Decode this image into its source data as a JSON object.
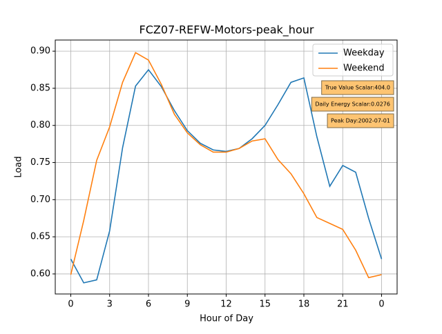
{
  "chart_data": {
    "type": "line",
    "title": "FCZ07-REFW-Motors-peak_hour",
    "xlabel": "Hour of Day",
    "ylabel": "Load",
    "x": [
      0,
      1,
      2,
      3,
      4,
      5,
      6,
      7,
      8,
      9,
      10,
      11,
      12,
      13,
      14,
      15,
      16,
      17,
      18,
      19,
      20,
      21,
      22,
      23,
      24
    ],
    "series": [
      {
        "name": "Weekday",
        "color": "#1f77b4",
        "values": [
          0.62,
          0.588,
          0.592,
          0.658,
          0.77,
          0.853,
          0.875,
          0.852,
          0.82,
          0.793,
          0.776,
          0.767,
          0.765,
          0.769,
          0.782,
          0.8,
          0.828,
          0.858,
          0.864,
          0.785,
          0.718,
          0.746,
          0.737,
          0.675,
          0.62
        ]
      },
      {
        "name": "Weekend",
        "color": "#ff7f0e",
        "values": [
          0.599,
          0.672,
          0.753,
          0.798,
          0.858,
          0.898,
          0.888,
          0.855,
          0.815,
          0.79,
          0.774,
          0.764,
          0.764,
          0.769,
          0.779,
          0.782,
          0.754,
          0.735,
          0.708,
          0.676,
          0.668,
          0.66,
          0.632,
          0.595,
          0.599
        ]
      }
    ],
    "xlim": [
      -1.2,
      25.2
    ],
    "xticks": [
      0,
      3,
      6,
      9,
      12,
      15,
      18,
      21,
      {
        "value": 24,
        "label": "0"
      }
    ],
    "ylim": [
      0.573,
      0.915
    ],
    "yticks": [
      {
        "value": 0.6,
        "label": "0.60"
      },
      0.65,
      {
        "value": 0.7,
        "label": "0.70"
      },
      0.75,
      {
        "value": 0.8,
        "label": "0.80"
      },
      0.85,
      {
        "value": 0.9,
        "label": "0.90"
      }
    ],
    "grid": true,
    "legend": "upper right",
    "annotations": [
      "True Value Scalar:404.0",
      "Daily Energy Scalar:0.0276",
      "Peak Day:2002-07-01"
    ]
  }
}
